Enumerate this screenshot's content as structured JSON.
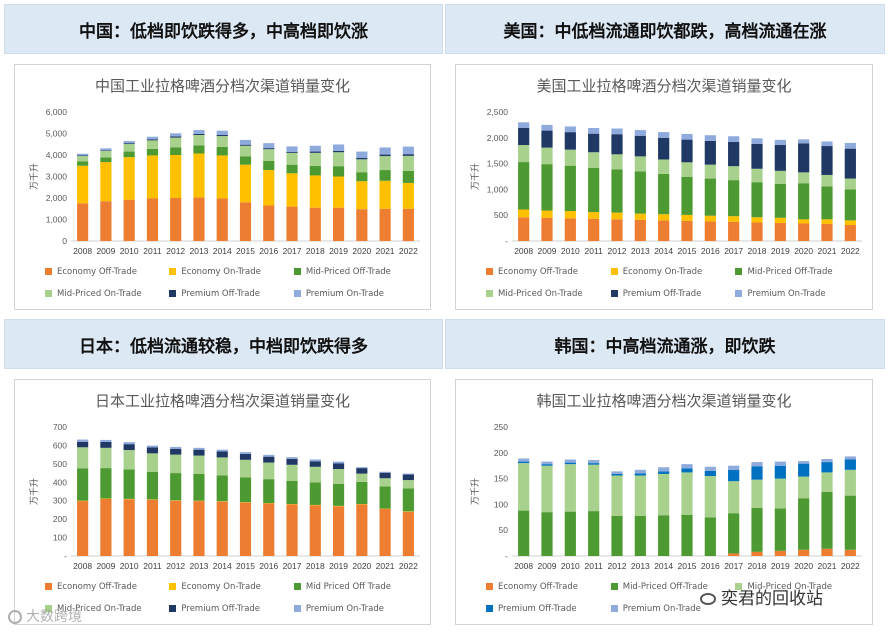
{
  "panels": [
    {
      "header": "中国：低档即饮跌得多，中高档即饮涨",
      "chart_data": {
        "type": "bar",
        "stacked": true,
        "title": "中国工业拉格啤酒分档次渠道销量变化",
        "ylabel": "万千升",
        "yticks": [
          "0",
          "1,000",
          "2,000",
          "3,000",
          "4,000",
          "5,000",
          "6,000"
        ],
        "ylim": [
          0,
          6000
        ],
        "categories": [
          "2008",
          "2009",
          "2010",
          "2011",
          "2012",
          "2013",
          "2014",
          "2015",
          "2016",
          "2017",
          "2018",
          "2019",
          "2020",
          "2021",
          "2022"
        ],
        "series": [
          {
            "name": "Economy Off-Trade",
            "color": "#ed7d31",
            "values": [
              1750,
              1850,
              1920,
              1980,
              2000,
              2020,
              1980,
              1800,
              1650,
              1600,
              1550,
              1550,
              1480,
              1500,
              1500
            ]
          },
          {
            "name": "Economy On-Trade",
            "color": "#ffc000",
            "values": [
              1750,
              1820,
              1980,
              2000,
              2000,
              2050,
              2000,
              1750,
              1650,
              1550,
              1500,
              1450,
              1300,
              1300,
              1200
            ]
          },
          {
            "name": "Mid-Priced Off-Trade",
            "color": "#4e9a32",
            "values": [
              200,
              220,
              260,
              300,
              360,
              380,
              400,
              380,
              420,
              400,
              450,
              480,
              420,
              500,
              560
            ]
          },
          {
            "name": "Mid-Priced On-Trade",
            "color": "#a9d18e",
            "values": [
              250,
              300,
              350,
              400,
              450,
              480,
              500,
              500,
              550,
              550,
              600,
              650,
              600,
              650,
              700
            ]
          },
          {
            "name": "Premium Off-Trade",
            "color": "#1f3864",
            "values": [
              30,
              30,
              40,
              50,
              50,
              50,
              50,
              50,
              50,
              50,
              60,
              60,
              60,
              70,
              80
            ]
          },
          {
            "name": "Premium On-Trade",
            "color": "#8faadc",
            "values": [
              80,
              90,
              100,
              120,
              150,
              180,
              200,
              220,
              230,
              250,
              270,
              300,
              300,
              330,
              350
            ]
          }
        ]
      }
    },
    {
      "header": "美国：中低档流通即饮都跌，高档流通在涨",
      "chart_data": {
        "type": "bar",
        "stacked": true,
        "title": "美国工业拉格啤酒分档次渠道销量变化",
        "ylabel": "万千升",
        "yticks": [
          "-",
          "500",
          "1,000",
          "1,500",
          "2,000",
          "2,500"
        ],
        "ylim": [
          0,
          2500
        ],
        "categories": [
          "2008",
          "2009",
          "2010",
          "2011",
          "2012",
          "2013",
          "2014",
          "2015",
          "2016",
          "2017",
          "2018",
          "2019",
          "2020",
          "2021",
          "2022"
        ],
        "series": [
          {
            "name": "Economy Off-Trade",
            "color": "#ed7d31",
            "values": [
              460,
              450,
              440,
              430,
              420,
              410,
              400,
              390,
              380,
              370,
              360,
              350,
              340,
              330,
              310
            ]
          },
          {
            "name": "Economy On-Trade",
            "color": "#ffc000",
            "values": [
              150,
              140,
              140,
              130,
              130,
              120,
              120,
              115,
              110,
              110,
              100,
              100,
              80,
              90,
              90
            ]
          },
          {
            "name": "Mid-Priced Off-Trade",
            "color": "#4e9a32",
            "values": [
              920,
              900,
              880,
              860,
              840,
              820,
              780,
              740,
              720,
              700,
              680,
              660,
              700,
              640,
              600
            ]
          },
          {
            "name": "Mid-Priced On-Trade",
            "color": "#a9d18e",
            "values": [
              330,
              320,
              310,
              300,
              290,
              290,
              280,
              280,
              270,
              270,
              260,
              250,
              210,
              220,
              210
            ]
          },
          {
            "name": "Premium Off-Trade",
            "color": "#1f3864",
            "values": [
              330,
              330,
              340,
              360,
              390,
              400,
              420,
              440,
              460,
              470,
              480,
              500,
              560,
              560,
              580
            ]
          },
          {
            "name": "Premium On-Trade",
            "color": "#8faadc",
            "values": [
              110,
              110,
              110,
              110,
              110,
              110,
              110,
              110,
              110,
              110,
              110,
              100,
              80,
              90,
              110
            ]
          }
        ]
      }
    },
    {
      "header": "日本：低档流通较稳，中档即饮跌得多",
      "chart_data": {
        "type": "bar",
        "stacked": true,
        "title": "日本工业拉格啤酒分档次渠道销量变化",
        "ylabel": "万千升",
        "yticks": [
          "-",
          "100",
          "200",
          "300",
          "400",
          "500",
          "600",
          "700"
        ],
        "ylim": [
          0,
          700
        ],
        "categories": [
          "2008",
          "2009",
          "2010",
          "2011",
          "2012",
          "2013",
          "2014",
          "2015",
          "2016",
          "2017",
          "2018",
          "2019",
          "2020",
          "2021",
          "2022"
        ],
        "series": [
          {
            "name": "Economy Off-Trade",
            "color": "#ed7d31",
            "values": [
              298,
              310,
              308,
              305,
              300,
              298,
              295,
              290,
              285,
              280,
              275,
              270,
              280,
              255,
              240
            ]
          },
          {
            "name": "Economy On-Trade",
            "color": "#ffc000",
            "values": [
              2,
              2,
              2,
              2,
              2,
              2,
              2,
              2,
              2,
              2,
              2,
              2,
              2,
              2,
              2
            ]
          },
          {
            "name": "Mid Priced Off Trade",
            "color": "#4e9a32",
            "values": [
              175,
              165,
              160,
              150,
              148,
              145,
              140,
              135,
              130,
              125,
              122,
              120,
              120,
              120,
              125
            ]
          },
          {
            "name": "Mid-Priced On-Trade",
            "color": "#a9d18e",
            "values": [
              115,
              110,
              105,
              100,
              100,
              100,
              98,
              95,
              90,
              88,
              85,
              80,
              45,
              45,
              45
            ]
          },
          {
            "name": "Premium Off-Trade",
            "color": "#1f3864",
            "values": [
              30,
              32,
              32,
              32,
              32,
              32,
              32,
              32,
              32,
              32,
              30,
              30,
              30,
              30,
              30
            ]
          },
          {
            "name": "Premium On-Trade",
            "color": "#8faadc",
            "values": [
              12,
              11,
              11,
              10,
              10,
              10,
              10,
              10,
              10,
              10,
              10,
              10,
              5,
              5,
              5
            ]
          }
        ]
      }
    },
    {
      "header": "韩国：中高档流通涨，即饮跌",
      "chart_data": {
        "type": "bar",
        "stacked": true,
        "title": "韩国工业拉格啤酒分档次渠道销量变化",
        "ylabel": "万千升",
        "yticks": [
          "-",
          "50",
          "100",
          "150",
          "200",
          "250"
        ],
        "ylim": [
          0,
          250
        ],
        "categories": [
          "2008",
          "2009",
          "2010",
          "2011",
          "2012",
          "2013",
          "2014",
          "2015",
          "2016",
          "2017",
          "2018",
          "2019",
          "2020",
          "2021",
          "2022"
        ],
        "series": [
          {
            "name": "Economy Off-Trade",
            "color": "#ed7d31",
            "values": [
              0,
              0,
              0,
              0,
              0,
              0,
              0,
              0,
              0,
              5,
              8,
              10,
              12,
              14,
              12
            ]
          },
          {
            "name": "Mid-Priced Off-Trade",
            "color": "#4e9a32",
            "values": [
              88,
              85,
              86,
              87,
              78,
              78,
              79,
              80,
              75,
              78,
              85,
              82,
              100,
              110,
              105
            ]
          },
          {
            "name": "Mid-Priced On-Trade",
            "color": "#a9d18e",
            "values": [
              92,
              90,
              92,
              90,
              78,
              78,
              80,
              82,
              80,
              62,
              55,
              58,
              42,
              38,
              50
            ]
          },
          {
            "name": "Premium Off-Trade",
            "color": "#0070c0",
            "values": [
              3,
              3,
              3,
              3,
              3,
              4,
              5,
              8,
              10,
              22,
              26,
              25,
              25,
              20,
              20
            ]
          },
          {
            "name": "Premium On-Trade",
            "color": "#8faadc",
            "values": [
              6,
              5,
              6,
              6,
              5,
              7,
              8,
              8,
              8,
              8,
              8,
              8,
              5,
              6,
              6
            ]
          }
        ]
      }
    }
  ],
  "watermark_left": "大数跨境",
  "watermark_right": "奕君的回收站"
}
